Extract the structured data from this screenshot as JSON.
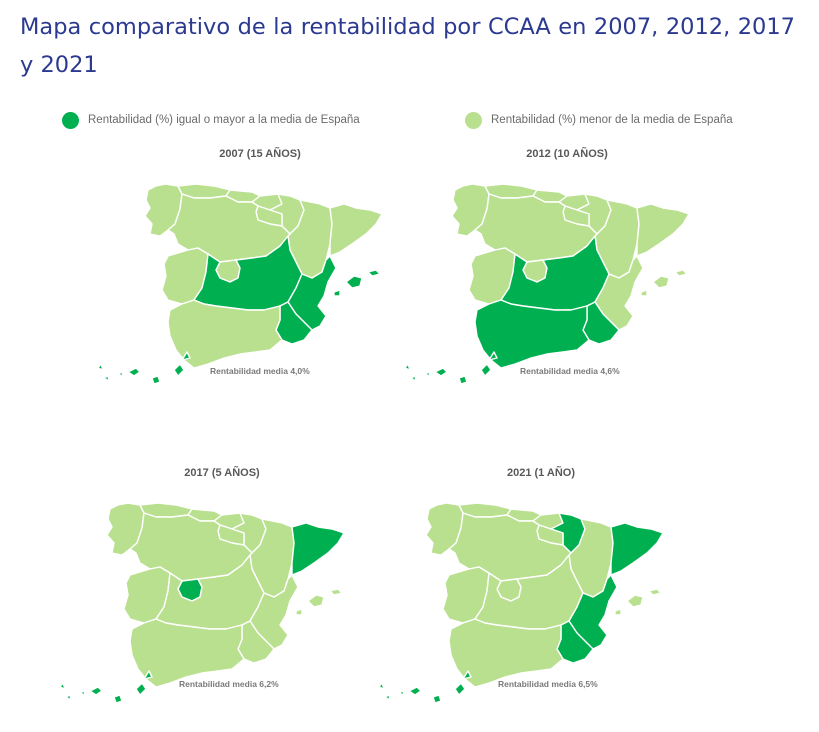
{
  "title": "Mapa comparativo de la rentabilidad por CCAA en 2007, 2012, 2017 y 2021",
  "legend": [
    {
      "label": "Rentabilidad (%) igual o mayor a la media de España",
      "color": "#00b050"
    },
    {
      "label": "Rentabilidad (%) menor de la media de España",
      "color": "#b9e08f"
    }
  ],
  "colors": {
    "above": "#00b050",
    "below": "#b9e08f"
  },
  "maps": [
    {
      "title": "2007 (15 AÑOS)",
      "average_label": "Rentabilidad media",
      "average_value": "4,0%",
      "above": [
        "castilla-la-mancha",
        "valencia",
        "murcia",
        "baleares",
        "canarias"
      ]
    },
    {
      "title": "2012 (10 AÑOS)",
      "average_label": "Rentabilidad media",
      "average_value": "4,6%",
      "above": [
        "castilla-la-mancha",
        "andalucia",
        "murcia",
        "canarias"
      ]
    },
    {
      "title": "2017 (5 AÑOS)",
      "average_label": "Rentabilidad media 6,2%",
      "average_value": "",
      "above": [
        "madrid",
        "cataluna",
        "canarias"
      ]
    },
    {
      "title": "2021 (1 AÑO)",
      "average_label": "Rentabilidad media",
      "average_value": "6,5%",
      "above": [
        "navarra",
        "cataluna",
        "valencia",
        "murcia",
        "canarias"
      ]
    }
  ]
}
